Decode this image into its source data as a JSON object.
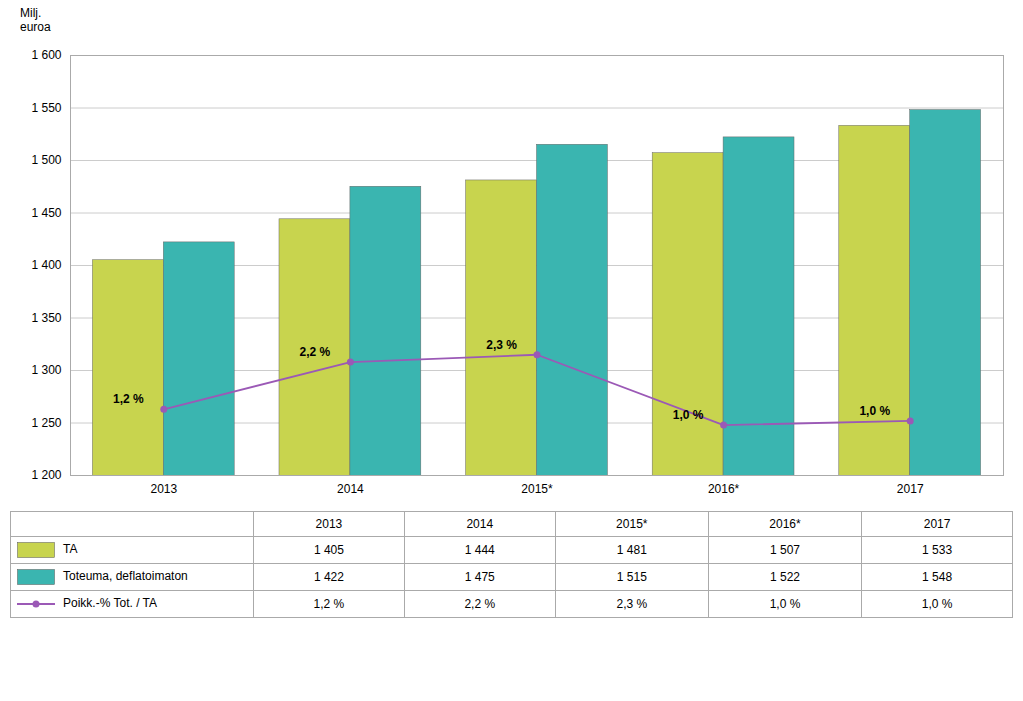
{
  "chart_data": {
    "type": "bar",
    "categories": [
      "2013",
      "2014",
      "2015*",
      "2016*",
      "2017"
    ],
    "series": [
      {
        "name": "TA",
        "type": "bar",
        "color": "#c8d44e",
        "values": [
          1405,
          1444,
          1481,
          1507,
          1533
        ]
      },
      {
        "name": "Toteuma, deflatoimaton",
        "type": "bar",
        "color": "#3ab5b0",
        "values": [
          1422,
          1475,
          1515,
          1522,
          1548
        ]
      },
      {
        "name": "Poikk.-% Tot. / TA",
        "type": "line",
        "color": "#9b59b6",
        "marker": "circle",
        "values": [
          1263,
          1308,
          1315,
          1248,
          1252
        ]
      }
    ],
    "annotations": [
      "1,2 %",
      "2,2 %",
      "2,3 %",
      "1,0 %",
      "1,0 %"
    ],
    "ylabel": "Milj.\neuroa",
    "ylim": [
      1200,
      1600
    ],
    "yticks": [
      {
        "value": 1200,
        "label": "1 200"
      },
      {
        "value": 1250,
        "label": "1 250"
      },
      {
        "value": 1300,
        "label": "1 300"
      },
      {
        "value": 1350,
        "label": "1 350"
      },
      {
        "value": 1400,
        "label": "1 400"
      },
      {
        "value": 1450,
        "label": "1 450"
      },
      {
        "value": 1500,
        "label": "1 500"
      },
      {
        "value": 1550,
        "label": "1 550"
      },
      {
        "value": 1600,
        "label": "1 600"
      }
    ],
    "grid": true,
    "table": [
      [
        "1 405",
        "1 444",
        "1 481",
        "1 507",
        "1 533"
      ],
      [
        "1 422",
        "1 475",
        "1 515",
        "1 522",
        "1 548"
      ],
      [
        "1,2 %",
        "2,2 %",
        "2,3 %",
        "1,0 %",
        "1,0 %"
      ]
    ]
  }
}
